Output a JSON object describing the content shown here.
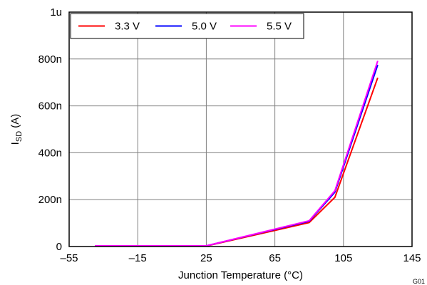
{
  "chart_data": {
    "type": "line",
    "title": "",
    "xlabel": "Junction Temperature (°C)",
    "ylabel_main": "I",
    "ylabel_sub": "SD",
    "ylabel_suffix": " (A)",
    "xlim": [
      -55,
      145
    ],
    "ylim": [
      0,
      1e-06
    ],
    "x_ticks": [
      -55,
      -15,
      25,
      65,
      105,
      145
    ],
    "x_tick_labels": [
      "–55",
      "–15",
      "25",
      "65",
      "105",
      "145"
    ],
    "y_ticks": [
      0,
      2e-07,
      4e-07,
      6e-07,
      8e-07,
      1e-06
    ],
    "y_tick_labels": [
      "0",
      "200n",
      "400n",
      "600n",
      "800n",
      "1u"
    ],
    "grid": true,
    "legend_position": "top-left",
    "series": [
      {
        "name": "3.3 V",
        "color": "#ff0000",
        "x": [
          -40,
          25,
          85,
          100,
          125
        ],
        "y": [
          2e-09,
          2e-09,
          1.02e-07,
          2.1e-07,
          7.2e-07
        ]
      },
      {
        "name": "5.0 V",
        "color": "#0000ff",
        "x": [
          -40,
          25,
          85,
          100,
          125
        ],
        "y": [
          3e-09,
          3e-09,
          1.08e-07,
          2.32e-07,
          7.75e-07
        ]
      },
      {
        "name": "5.5 V",
        "color": "#ff00ff",
        "x": [
          -40,
          25,
          85,
          100,
          125
        ],
        "y": [
          3e-09,
          3e-09,
          1.1e-07,
          2.38e-07,
          7.92e-07
        ]
      }
    ],
    "footnote": "G01"
  }
}
